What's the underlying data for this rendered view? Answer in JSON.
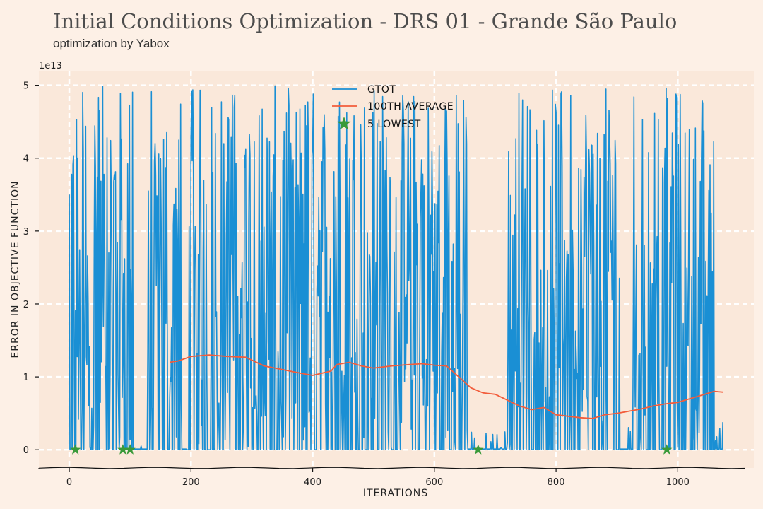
{
  "chart_data": {
    "type": "line",
    "title": "Initial Conditions Optimization - DRS 01 - Grande São Paulo",
    "subtitle": "optimization by Yabox",
    "xlabel": "Iterations",
    "ylabel": "Error in Objective Function",
    "y_scale_label": "1e13",
    "xlim": [
      -50,
      1125
    ],
    "ylim": [
      -0.25,
      5.2
    ],
    "x_ticks": [
      0,
      200,
      400,
      600,
      800,
      1000
    ],
    "y_ticks": [
      0,
      1,
      2,
      3,
      4,
      5
    ],
    "grid": true,
    "legend_position": "top-center",
    "colors": {
      "gtot": "#1a8fd4",
      "average": "#f25c3b",
      "lowest": "#3a9a3a",
      "background": "#fdf0e6",
      "plot_bg": "#fae8da"
    },
    "series": [
      {
        "name": "gtot",
        "label": "Gtot",
        "kind": "line",
        "color": "#1a8fd4",
        "n_points": 1075,
        "peak_max": 5.0,
        "baseline": 0.0
      },
      {
        "name": "100th average",
        "label": "100th average",
        "kind": "line",
        "color": "#f25c3b",
        "x": [
          165,
          180,
          200,
          230,
          260,
          290,
          320,
          350,
          380,
          400,
          430,
          440,
          460,
          480,
          500,
          530,
          560,
          580,
          600,
          620,
          640,
          660,
          680,
          700,
          720,
          740,
          760,
          780,
          800,
          820,
          840,
          860,
          880,
          900,
          920,
          940,
          960,
          980,
          1000,
          1020,
          1040,
          1060,
          1075
        ],
        "y": [
          1.2,
          1.22,
          1.28,
          1.3,
          1.28,
          1.27,
          1.15,
          1.1,
          1.05,
          1.02,
          1.08,
          1.17,
          1.2,
          1.15,
          1.12,
          1.15,
          1.17,
          1.18,
          1.16,
          1.15,
          1.0,
          0.85,
          0.78,
          0.76,
          0.68,
          0.6,
          0.55,
          0.58,
          0.48,
          0.46,
          0.44,
          0.43,
          0.48,
          0.5,
          0.53,
          0.56,
          0.6,
          0.63,
          0.65,
          0.7,
          0.75,
          0.8,
          0.79
        ]
      },
      {
        "name": "5 lowest",
        "label": "5 Lowest",
        "kind": "scatter",
        "color": "#3a9a3a",
        "x": [
          10,
          88,
          100,
          672,
          982
        ],
        "y": [
          0.0,
          0.0,
          0.0,
          0.0,
          0.0
        ]
      }
    ]
  }
}
